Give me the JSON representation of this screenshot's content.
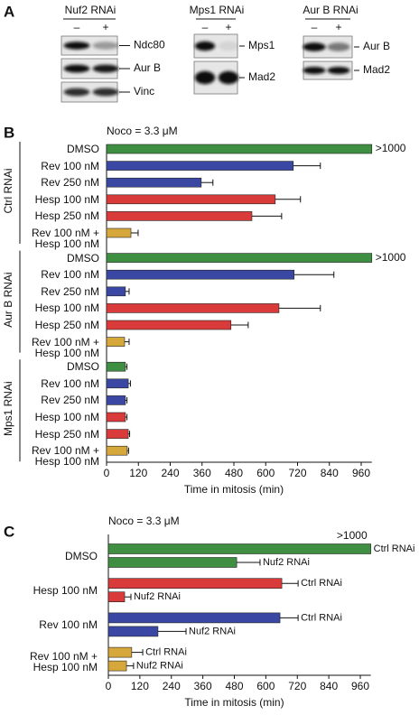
{
  "panel_labels": [
    "A",
    "B",
    "C"
  ],
  "blots": [
    {
      "title": "Nuf2 RNAi",
      "lanes": [
        "–",
        "+"
      ],
      "bands": [
        "Ndc80",
        "Aur B",
        "Vinc"
      ]
    },
    {
      "title": "Mps1 RNAi",
      "lanes": [
        "–",
        "+"
      ],
      "bands": [
        "Mps1",
        "Mad2"
      ]
    },
    {
      "title": "Aur B RNAi",
      "lanes": [
        "–",
        "+"
      ],
      "bands": [
        "Aur B",
        "Mad2"
      ]
    }
  ],
  "chart_data": [
    {
      "type": "hbar",
      "title": "Noco = 3.3 μM",
      "x_label": "Time in mitosis (min)",
      "xlim": [
        0,
        1000
      ],
      "xticks": [
        0,
        120,
        240,
        360,
        480,
        600,
        720,
        840,
        960
      ],
      "groups": [
        {
          "name": "Ctrl RNAi",
          "categories": [
            "DMSO",
            "Rev 100 nM",
            "Rev 250 nM",
            "Hesp 100 nM",
            "Hesp 250 nM",
            "Rev 100 nM +\nHesp 100 nM"
          ],
          "colors": [
            "#3f8f43",
            "#3b48a3",
            "#3b48a3",
            "#d93a3a",
            "#d93a3a",
            "#d6a83c"
          ],
          "values": [
            1000,
            704,
            357,
            636,
            548,
            92
          ],
          "errors": [
            null,
            102,
            44,
            95,
            112,
            27
          ],
          "value_labels": [
            ">1000",
            null,
            null,
            null,
            null,
            null
          ]
        },
        {
          "name": "Aur B RNAi",
          "categories": [
            "DMSO",
            "Rev 100 nM",
            "Rev 250 nM",
            "Hesp 100 nM",
            "Hesp 250 nM",
            "Rev 100 nM +\nHesp 100 nM"
          ],
          "colors": [
            "#3f8f43",
            "#3b48a3",
            "#3b48a3",
            "#d93a3a",
            "#d93a3a",
            "#d6a83c"
          ],
          "values": [
            1000,
            707,
            71,
            650,
            469,
            68
          ],
          "errors": [
            null,
            150,
            14,
            156,
            65,
            17
          ],
          "value_labels": [
            ">1000",
            null,
            null,
            null,
            null,
            null
          ]
        },
        {
          "name": "Mps1 RNAi",
          "categories": [
            "DMSO",
            "Rev 100 nM",
            "Rev 250 nM",
            "Hesp 100 nM",
            "Hesp 250 nM",
            "Rev 100 nM +\nHesp 100 nM"
          ],
          "colors": [
            "#3f8f43",
            "#3b48a3",
            "#3b48a3",
            "#d93a3a",
            "#d93a3a",
            "#d6a83c"
          ],
          "values": [
            71,
            82,
            71,
            71,
            82,
            78
          ],
          "errors": [
            6,
            8,
            6,
            6,
            5,
            5
          ],
          "value_labels": [
            null,
            null,
            null,
            null,
            null,
            null
          ]
        }
      ]
    },
    {
      "type": "grouped-hbar",
      "title": "Noco = 3.3 μM",
      "x_label": "Time in mitosis (min)",
      "xlim": [
        0,
        1000
      ],
      "xticks": [
        0,
        120,
        240,
        360,
        480,
        600,
        720,
        840,
        960
      ],
      "categories": [
        "DMSO",
        "Hesp 100 nM",
        "Rev 100 nM",
        "Rev 100 nM +\nHesp 100 nM"
      ],
      "colors": [
        "#3f8f43",
        "#d93a3a",
        "#3b48a3",
        "#d6a83c"
      ],
      "series": [
        {
          "name": "Ctrl RNAi",
          "values": [
            1000,
            661,
            654,
            89
          ],
          "errors": [
            null,
            62,
            69,
            42
          ],
          "value_labels": [
            ">1000",
            null,
            null,
            null
          ]
        },
        {
          "name": "Nuf2 RNAi",
          "values": [
            489,
            62,
            189,
            69
          ],
          "errors": [
            89,
            24,
            107,
            27
          ],
          "value_labels": [
            null,
            null,
            null,
            null
          ]
        }
      ]
    }
  ]
}
